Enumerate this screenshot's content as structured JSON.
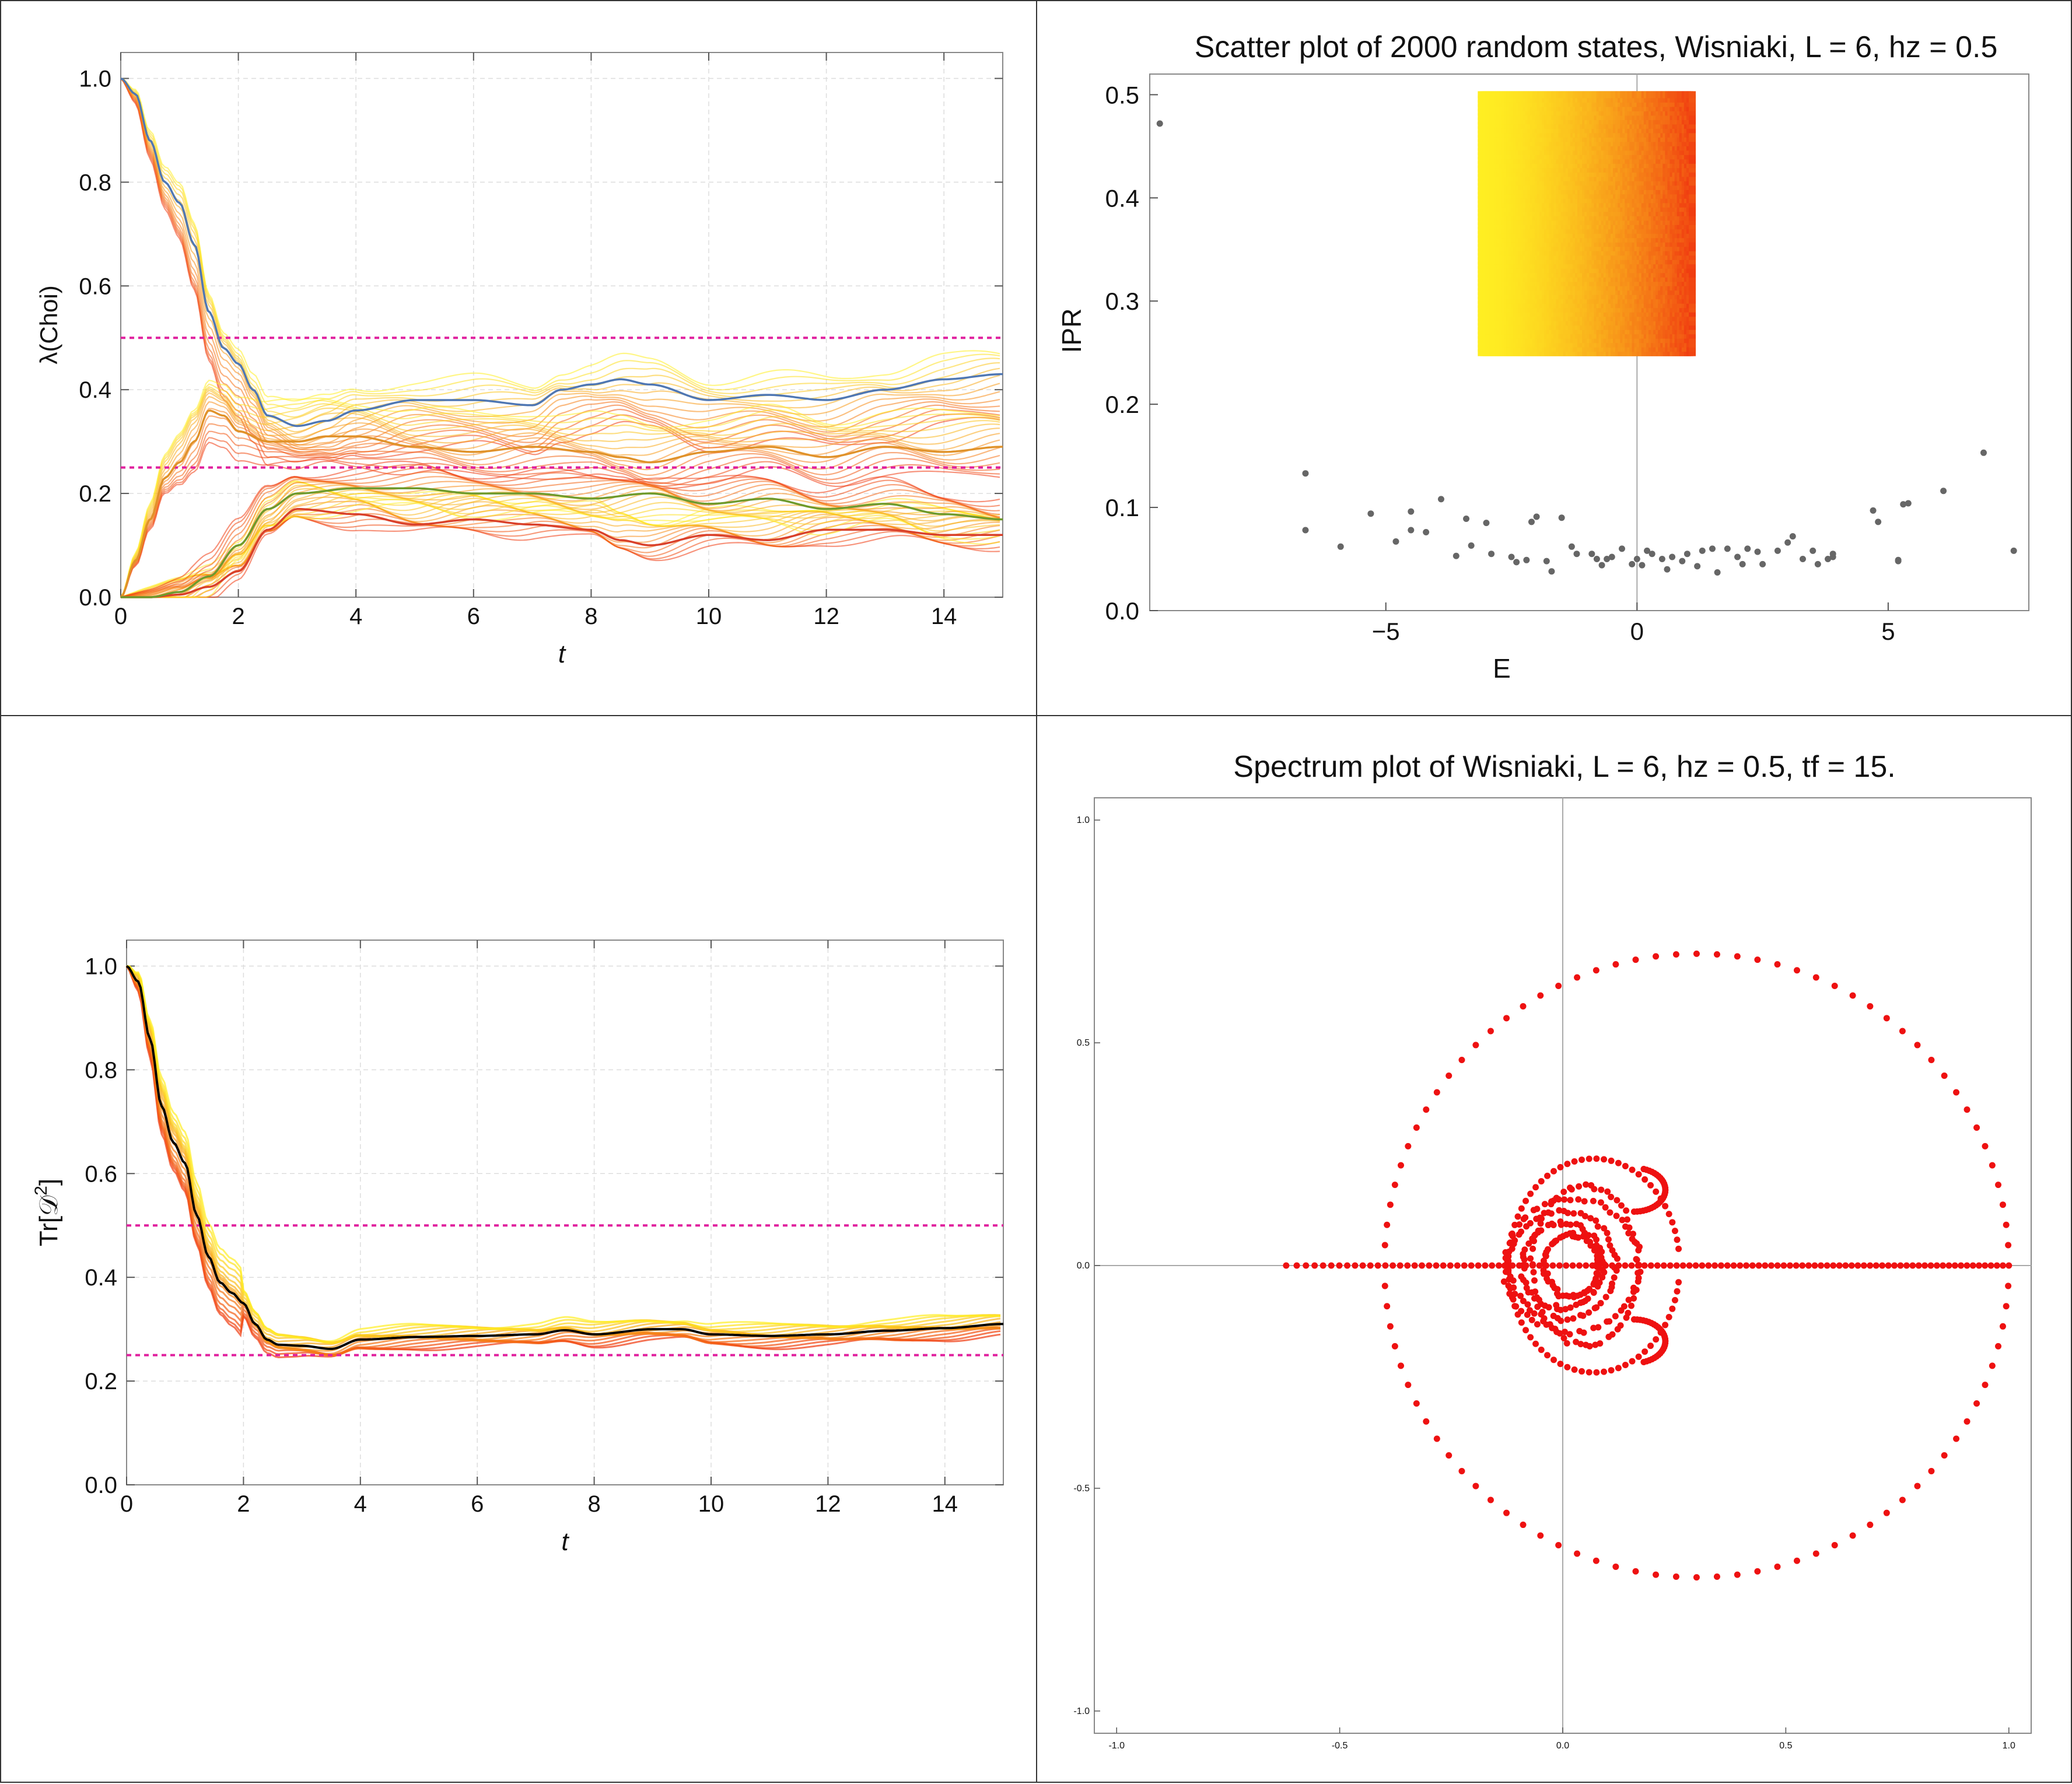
{
  "colors": {
    "magenta_ref": "#e0209e",
    "blue_line": "#4f77b3",
    "green_line": "#6e9a2c",
    "orange_line": "#e0922a",
    "red_line": "#d9402a",
    "black_line": "#000000",
    "gray_points": "#666666",
    "spectrum_red": "#ee1111",
    "band_yellow": "#ffee22",
    "band_red": "#f03a10"
  },
  "chart_data": [
    {
      "type": "line",
      "xlabel": "t",
      "ylabel": "λ(Choi)",
      "xlim": [
        0,
        15
      ],
      "ylim": [
        0,
        1.05
      ],
      "xticks": [
        "0",
        "2",
        "4",
        "6",
        "8",
        "10",
        "12",
        "14"
      ],
      "yticks": [
        "0.0",
        "0.2",
        "0.4",
        "0.6",
        "0.8",
        "1.0"
      ],
      "grid": true,
      "reference_lines": [
        0.5,
        0.25
      ],
      "series": [
        {
          "color": "blue",
          "x": [
            0,
            0.25,
            0.5,
            0.75,
            1,
            1.25,
            1.5,
            1.75,
            2,
            2.25,
            2.5,
            3,
            3.5,
            4,
            5,
            6,
            7,
            7.5,
            8,
            8.5,
            9,
            10,
            11,
            12,
            13,
            14,
            15
          ],
          "values": [
            1.0,
            0.97,
            0.88,
            0.8,
            0.76,
            0.68,
            0.55,
            0.48,
            0.45,
            0.4,
            0.35,
            0.33,
            0.34,
            0.36,
            0.38,
            0.38,
            0.37,
            0.4,
            0.41,
            0.42,
            0.41,
            0.38,
            0.39,
            0.38,
            0.4,
            0.42,
            0.43
          ]
        },
        {
          "color": "orange",
          "x": [
            0,
            0.25,
            0.5,
            0.75,
            1,
            1.25,
            1.5,
            1.75,
            2,
            2.5,
            3,
            3.5,
            4,
            5,
            6,
            7,
            8,
            8.5,
            9,
            10,
            11,
            12,
            13,
            14,
            15
          ],
          "values": [
            0.0,
            0.07,
            0.15,
            0.23,
            0.26,
            0.3,
            0.36,
            0.35,
            0.32,
            0.3,
            0.3,
            0.31,
            0.31,
            0.29,
            0.28,
            0.29,
            0.28,
            0.27,
            0.26,
            0.28,
            0.29,
            0.27,
            0.29,
            0.28,
            0.29
          ]
        },
        {
          "color": "red",
          "x": [
            0,
            0.5,
            1,
            1.5,
            2,
            2.5,
            3,
            4,
            5,
            6,
            7,
            8,
            8.5,
            9,
            10,
            11,
            12,
            13,
            14,
            15
          ],
          "values": [
            0.0,
            0.0,
            0.005,
            0.02,
            0.05,
            0.13,
            0.17,
            0.16,
            0.14,
            0.15,
            0.14,
            0.13,
            0.11,
            0.1,
            0.12,
            0.11,
            0.13,
            0.13,
            0.12,
            0.12
          ]
        },
        {
          "color": "green",
          "x": [
            0,
            0.5,
            1,
            1.5,
            2,
            2.5,
            3,
            4,
            5,
            6,
            7,
            8,
            9,
            10,
            11,
            12,
            13,
            14,
            15
          ],
          "values": [
            0.0,
            0.0,
            0.01,
            0.04,
            0.1,
            0.17,
            0.2,
            0.21,
            0.21,
            0.2,
            0.2,
            0.19,
            0.2,
            0.18,
            0.19,
            0.17,
            0.18,
            0.16,
            0.15
          ]
        }
      ]
    },
    {
      "type": "scatter",
      "title": "Scatter plot of 2000 random states, Wisniaki, L = 6, hz = 0.5",
      "xlabel": "E",
      "ylabel": "IPR",
      "xlim": [
        -9.7,
        7.8
      ],
      "ylim": [
        0,
        0.52
      ],
      "xticks": [
        "−5",
        "0",
        "5"
      ],
      "yticks": [
        "0.0",
        "0.1",
        "0.2",
        "0.3",
        "0.4",
        "0.5"
      ],
      "band": {
        "x_range": [
          -3.1,
          1.1
        ],
        "y_range": [
          0.25,
          0.5
        ]
      },
      "points": [
        [
          -9.5,
          0.472
        ],
        [
          -6.6,
          0.133
        ],
        [
          -6.6,
          0.078
        ],
        [
          -5.9,
          0.062
        ],
        [
          -5.3,
          0.094
        ],
        [
          -4.8,
          0.067
        ],
        [
          -4.5,
          0.078
        ],
        [
          -4.5,
          0.096
        ],
        [
          -4.2,
          0.076
        ],
        [
          -3.9,
          0.108
        ],
        [
          -3.6,
          0.053
        ],
        [
          -3.4,
          0.089
        ],
        [
          -3.3,
          0.063
        ],
        [
          -3.0,
          0.085
        ],
        [
          -2.9,
          0.055
        ],
        [
          -2.5,
          0.052
        ],
        [
          -2.4,
          0.047
        ],
        [
          -2.2,
          0.049
        ],
        [
          -2.1,
          0.086
        ],
        [
          -2.0,
          0.091
        ],
        [
          -1.8,
          0.048
        ],
        [
          -1.7,
          0.038
        ],
        [
          -1.5,
          0.09
        ],
        [
          -1.3,
          0.062
        ],
        [
          -1.2,
          0.055
        ],
        [
          -0.9,
          0.055
        ],
        [
          -0.8,
          0.05
        ],
        [
          -0.7,
          0.044
        ],
        [
          -0.6,
          0.05
        ],
        [
          -0.5,
          0.052
        ],
        [
          -0.3,
          0.06
        ],
        [
          -0.1,
          0.045
        ],
        [
          0.0,
          0.05
        ],
        [
          0.1,
          0.044
        ],
        [
          0.2,
          0.058
        ],
        [
          0.3,
          0.055
        ],
        [
          0.5,
          0.05
        ],
        [
          0.6,
          0.04
        ],
        [
          0.7,
          0.052
        ],
        [
          0.9,
          0.048
        ],
        [
          1.0,
          0.055
        ],
        [
          1.2,
          0.043
        ],
        [
          1.3,
          0.058
        ],
        [
          1.5,
          0.06
        ],
        [
          1.6,
          0.037
        ],
        [
          1.8,
          0.06
        ],
        [
          2.0,
          0.052
        ],
        [
          2.1,
          0.045
        ],
        [
          2.2,
          0.06
        ],
        [
          2.4,
          0.057
        ],
        [
          2.5,
          0.045
        ],
        [
          2.8,
          0.058
        ],
        [
          3.0,
          0.066
        ],
        [
          3.1,
          0.072
        ],
        [
          3.3,
          0.05
        ],
        [
          3.5,
          0.058
        ],
        [
          3.6,
          0.045
        ],
        [
          3.8,
          0.05
        ],
        [
          3.9,
          0.052
        ],
        [
          3.9,
          0.055
        ],
        [
          4.7,
          0.097
        ],
        [
          4.8,
          0.086
        ],
        [
          5.2,
          0.048
        ],
        [
          5.2,
          0.049
        ],
        [
          5.3,
          0.103
        ],
        [
          5.4,
          0.104
        ],
        [
          6.1,
          0.116
        ],
        [
          6.9,
          0.153
        ],
        [
          7.5,
          0.058
        ]
      ]
    },
    {
      "type": "line",
      "xlabel": "t",
      "ylabel": "Tr[𝒟²]",
      "ylabel_main": "Tr[𝒟",
      "ylabel_sup": "2",
      "ylabel_end": "]",
      "xlim": [
        0,
        15
      ],
      "ylim": [
        0,
        1.05
      ],
      "xticks": [
        "0",
        "2",
        "4",
        "6",
        "8",
        "10",
        "12",
        "14"
      ],
      "yticks": [
        "0.0",
        "0.2",
        "0.4",
        "0.6",
        "0.8",
        "1.0"
      ],
      "grid": true,
      "reference_lines": [
        0.5,
        0.25
      ],
      "series": [
        {
          "color": "black",
          "x": [
            0,
            0.2,
            0.4,
            0.6,
            0.8,
            1,
            1.2,
            1.4,
            1.6,
            1.8,
            2,
            2.2,
            2.4,
            2.6,
            3,
            3.5,
            4,
            5,
            6,
            7,
            7.5,
            8,
            9,
            9.5,
            10,
            11,
            12,
            13,
            14,
            15
          ],
          "values": [
            1.0,
            0.97,
            0.86,
            0.73,
            0.66,
            0.62,
            0.52,
            0.44,
            0.39,
            0.37,
            0.35,
            0.31,
            0.28,
            0.27,
            0.268,
            0.262,
            0.28,
            0.285,
            0.287,
            0.29,
            0.298,
            0.29,
            0.3,
            0.3,
            0.29,
            0.287,
            0.29,
            0.297,
            0.302,
            0.31
          ]
        }
      ]
    },
    {
      "type": "scatter",
      "title": "Spectrum plot of Wisniaki, L = 6, hz = 0.5, tf = 15.",
      "xlim": [
        -1.05,
        1.05
      ],
      "ylim": [
        -1.05,
        1.05
      ],
      "xticks": [
        "-1.0",
        "-0.5",
        "0.0",
        "0.5",
        "1.0"
      ],
      "yticks": [
        "1.0",
        "0.5",
        "0.0",
        "-0.5",
        "-1.0"
      ],
      "outer_ring": {
        "center": [
          0.3,
          0.0
        ],
        "radius_x": 0.7,
        "radius_y": 0.7
      },
      "mid_ring": {
        "center": [
          0.07,
          0.0
        ],
        "radius_x": 0.24,
        "radius_y": 0.24
      },
      "real_axis_points": {
        "x_range": [
          -0.62,
          1.0
        ],
        "y": 0.0
      }
    }
  ]
}
